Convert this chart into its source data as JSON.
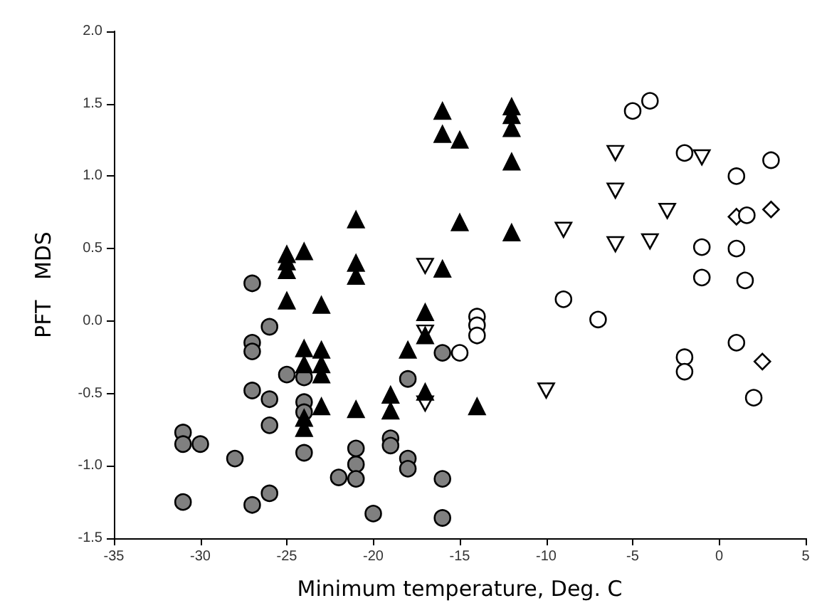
{
  "chart_data": {
    "type": "scatter",
    "xlabel": "Minimum temperature, Deg. C",
    "ylabel": "PFT   MDS",
    "xlim": [
      -35,
      5
    ],
    "xticks": [
      -35,
      -30,
      -25,
      -20,
      -15,
      -10,
      -5,
      0,
      5
    ],
    "ylim": [
      -1.5,
      2
    ],
    "yticks": [
      {
        "value": -1.5,
        "label": "-1.5"
      },
      {
        "value": -1,
        "label": "-1.0"
      },
      {
        "value": -0.5,
        "label": "-0.5"
      },
      {
        "value": 0,
        "label": "0.0"
      },
      {
        "value": 0.5,
        "label": "0.5"
      },
      {
        "value": 1,
        "label": "1.0"
      },
      {
        "value": 1.5,
        "label": "1.5"
      },
      {
        "value": 2,
        "label": "2.0"
      }
    ],
    "grid": false,
    "series": [
      {
        "marker": "triangle",
        "color": "#000000",
        "x": [
          -16,
          -12,
          -12,
          -12,
          -16,
          -15,
          -12,
          -21,
          -15,
          -12,
          -25,
          -25,
          -25,
          -24,
          -21,
          -21,
          -16,
          -25,
          -23,
          -17,
          -17,
          -24,
          -23,
          -18,
          -24,
          -23,
          -23,
          -17,
          -19,
          -23,
          -24,
          -24,
          -21,
          -19,
          -14
        ],
        "values": [
          1.45,
          1.48,
          1.42,
          1.33,
          1.29,
          1.25,
          1.1,
          0.7,
          0.68,
          0.61,
          0.46,
          0.41,
          0.35,
          0.48,
          0.4,
          0.31,
          0.36,
          0.14,
          0.11,
          0.06,
          -0.1,
          -0.19,
          -0.2,
          -0.2,
          -0.3,
          -0.3,
          -0.37,
          -0.49,
          -0.51,
          -0.59,
          -0.67,
          -0.74,
          -0.61,
          -0.62,
          -0.59
        ]
      },
      {
        "marker": "circle",
        "color": "#808080",
        "x": [
          -27,
          -26,
          -27,
          -27,
          -25,
          -24,
          -27,
          -26,
          -24,
          -24,
          -18,
          -26,
          -31,
          -31,
          -30,
          -28,
          -24,
          -21,
          -21,
          -21,
          -22,
          -19,
          -19,
          -18,
          -18,
          -16,
          -26,
          -31,
          -27,
          -20,
          -16,
          -16
        ],
        "values": [
          0.26,
          -0.04,
          -0.15,
          -0.21,
          -0.37,
          -0.39,
          -0.48,
          -0.54,
          -0.56,
          -0.63,
          -0.4,
          -0.72,
          -0.77,
          -0.85,
          -0.85,
          -0.95,
          -0.91,
          -0.88,
          -0.99,
          -1.09,
          -1.08,
          -0.81,
          -0.86,
          -0.95,
          -1.02,
          -1.09,
          -1.19,
          -1.25,
          -1.27,
          -1.33,
          -1.36,
          -0.22
        ]
      },
      {
        "marker": "circle",
        "color": "#ffffff",
        "x": [
          -5,
          -4,
          -2,
          1,
          3,
          -1,
          1,
          -1,
          1.5,
          -9,
          -7,
          -15,
          -14,
          -14,
          -14,
          -2,
          -2,
          1,
          2,
          1.6
        ],
        "values": [
          1.45,
          1.52,
          1.16,
          1.0,
          1.11,
          0.51,
          0.5,
          0.3,
          0.28,
          0.15,
          0.01,
          -0.22,
          0.03,
          -0.03,
          -0.1,
          -0.25,
          -0.35,
          -0.15,
          -0.53,
          0.73
        ]
      },
      {
        "marker": "triangle-down",
        "color": "#ffffff",
        "x": [
          -6,
          -1,
          -6,
          -3,
          -9,
          -6,
          -4,
          -17,
          -17,
          -17,
          -10
        ],
        "values": [
          1.16,
          1.13,
          0.9,
          0.76,
          0.63,
          0.53,
          0.55,
          0.38,
          -0.08,
          -0.57,
          -0.48
        ]
      },
      {
        "marker": "diamond",
        "color": "#ffffff",
        "x": [
          1,
          3,
          2.5
        ],
        "values": [
          0.72,
          0.77,
          -0.28
        ]
      }
    ]
  }
}
